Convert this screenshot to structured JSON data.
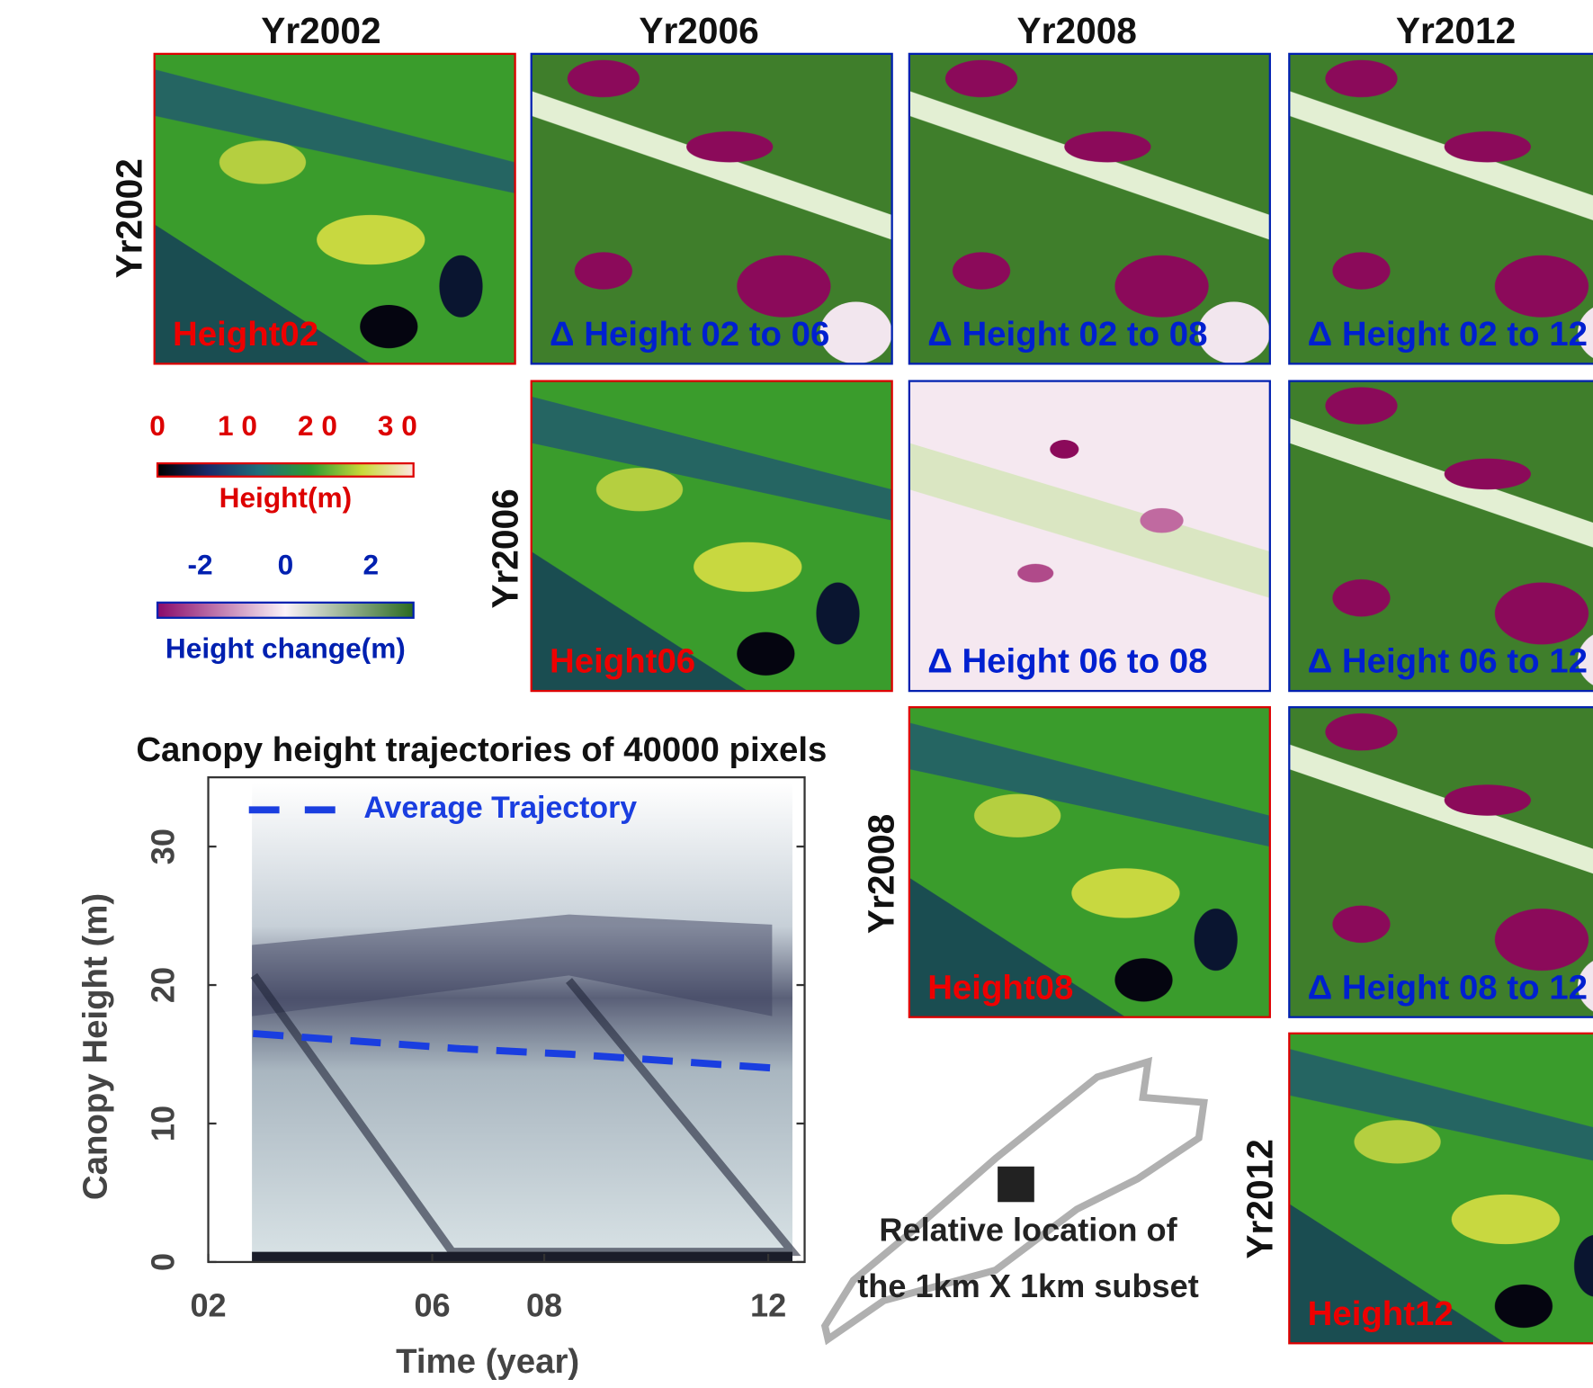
{
  "column_headers": [
    "Yr2002",
    "Yr2006",
    "Yr2008",
    "Yr2012"
  ],
  "row_headers": [
    "Yr2002",
    "Yr2006",
    "Yr2008",
    "Yr2012"
  ],
  "panels": [
    "Height02",
    "Δ Height 02 to 06",
    "Δ Height 02 to 08",
    "Δ Height 02 to 12",
    "Height06",
    "Δ Height 06 to 08",
    "Δ Height 06 to 12",
    "Height08",
    "Δ Height 08 to 12",
    "Height12"
  ],
  "height_colorbar": {
    "label": "Height(m)",
    "range": [
      0,
      32
    ],
    "ticks": [
      0,
      {
        "value": 10,
        "label": "1 0"
      },
      {
        "value": 20,
        "label": "2 0"
      },
      {
        "value": 30,
        "label": "3 0"
      }
    ]
  },
  "change_colorbar": {
    "label": "Height change(m)",
    "range": [
      -3,
      3
    ],
    "ticks": [
      -2,
      0,
      2
    ]
  },
  "location_inset": {
    "lines": [
      "Relative location of",
      "the 1km X 1km subset"
    ]
  },
  "chart_data": {
    "type": "line",
    "title": "Canopy height trajectories of 40000 pixels",
    "x_label": "Time (year)",
    "y_label": "Canopy Height (m)",
    "x": [
      2002.8,
      2006.5,
      2008.5,
      2012.1
    ],
    "series": [
      {
        "name": "Average Trajectory",
        "color": "#1a3ee0",
        "values": [
          16.5,
          15.4,
          15.0,
          14.0
        ]
      }
    ],
    "xlim": [
      2002,
      2012.65
    ],
    "ylim": [
      0,
      35
    ],
    "xticks": [
      {
        "value": 2002,
        "label": "02"
      },
      {
        "value": 2006,
        "label": "06"
      },
      {
        "value": 2008,
        "label": "08"
      },
      {
        "value": 2012,
        "label": "12"
      }
    ],
    "yticks": [
      0,
      10,
      20,
      30
    ],
    "legend": "upper left",
    "grid": false
  }
}
